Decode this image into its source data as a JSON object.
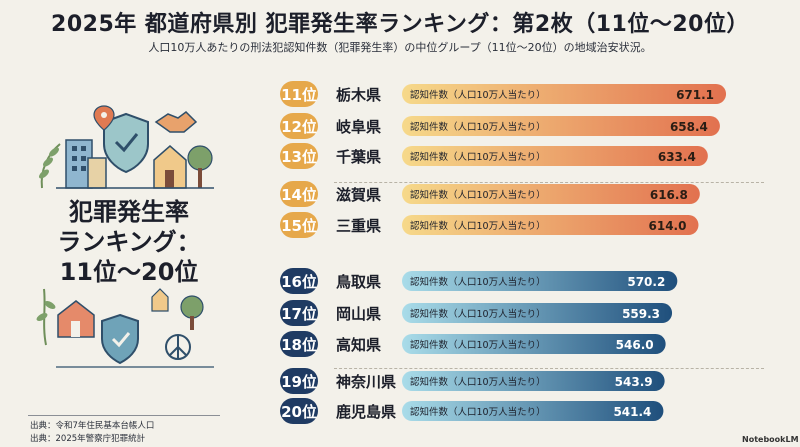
{
  "header": {
    "title": "2025年 都道府県別 犯罪発生率ランキング：第2枚（11位〜20位）",
    "subtitle": "人口10万人あたりの刑法犯認知件数（犯罪発生率）の中位グループ（11位〜20位）の地域治安状況。"
  },
  "panel": {
    "line1": "犯罪発生率",
    "line2": "ランキング：",
    "line3": "11位〜20位"
  },
  "source": {
    "line1": "出典：令和7年住民基本台帳人口",
    "line2": "出典：2025年警察庁犯罪統計"
  },
  "brand": "NotebookLM",
  "chart_data": {
    "type": "bar",
    "orientation": "horizontal",
    "title": "2025年 都道府県別 犯罪発生率ランキング：第2枚（11位〜20位）",
    "rank_suffix": "位",
    "bar_label": "認知件数（人口10万人当たり）",
    "ranks": [
      "11",
      "12",
      "13",
      "14",
      "15",
      "16",
      "17",
      "18",
      "19",
      "20"
    ],
    "categories": [
      "栃木県",
      "岐阜県",
      "千葉県",
      "滋賀県",
      "三重県",
      "鳥取県",
      "岡山県",
      "高知県",
      "神奈川県",
      "鹿児島県"
    ],
    "values": [
      671.1,
      658.4,
      633.4,
      616.8,
      614.0,
      570.2,
      559.3,
      546.0,
      543.9,
      541.4
    ],
    "value_labels": [
      "671.1",
      "658.4",
      "633.4",
      "616.8",
      "614.0",
      "570.2",
      "559.3",
      "546.0",
      "543.9",
      "541.4"
    ],
    "xlim": [
      0,
      700
    ],
    "colors": {
      "warm_badge": "#e6a84a",
      "warm_start": "#f6d98a",
      "warm_end": "#e2714f",
      "cool_badge": "#1f3b63",
      "cool_start": "#a9dce9",
      "cool_end": "#1f4f7c"
    }
  }
}
